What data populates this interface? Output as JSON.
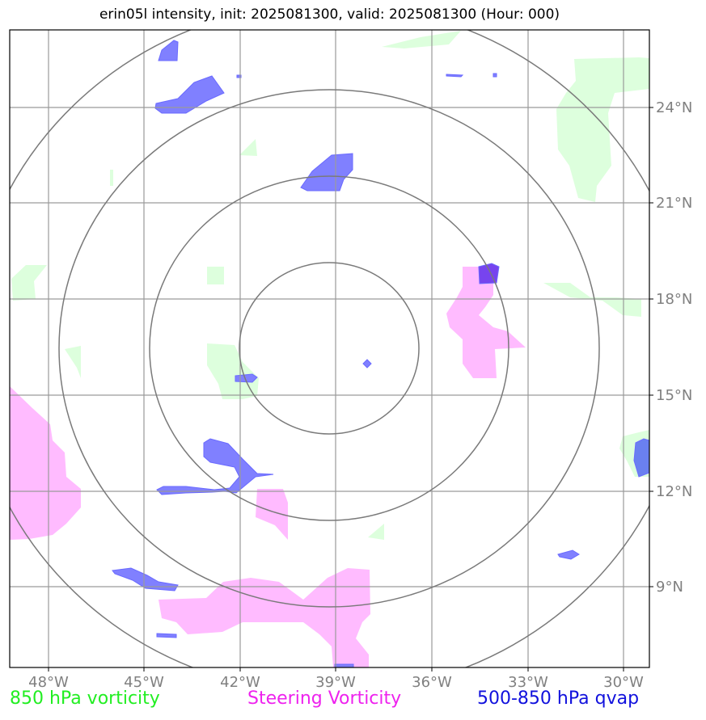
{
  "title": "erin05l intensity, init: 2025081300, valid: 2025081300 (Hour: 000)",
  "axes": {
    "longitude_ticks": [
      "48°W",
      "45°W",
      "42°W",
      "39°W",
      "36°W",
      "33°W",
      "30°W"
    ],
    "latitude_ticks": [
      "24°N",
      "21°N",
      "18°N",
      "15°N",
      "12°N",
      "9°N"
    ],
    "lon_range": [
      -49.2,
      -29.3
    ],
    "lat_range": [
      6.9,
      26.8
    ],
    "grid": true
  },
  "range_rings_center": {
    "lon": -39.2,
    "lat": 16.5
  },
  "legend": {
    "green": {
      "label": "850 hPa vorticity",
      "color": "#22ee22"
    },
    "pink": {
      "label": "Steering Vorticity",
      "color": "#ee22ee"
    },
    "blue": {
      "label": "500-850 hPa qvap",
      "color": "#1111dd"
    }
  },
  "colors": {
    "vorticity_fill": "#ddffdd",
    "steering_fill": "#ffbbff",
    "qvap_fill": "#8080ff",
    "grid": "#9a9a9a",
    "rings": "#7a7a7a",
    "tick_label": "#808080"
  }
}
